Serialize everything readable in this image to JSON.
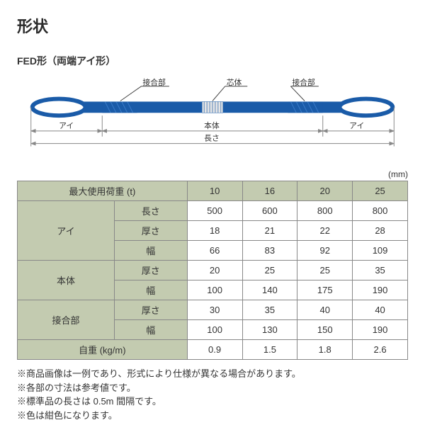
{
  "title": "形状",
  "subtitle": "FED形（両端アイ形）",
  "diagram": {
    "labels": {
      "joint": "接合部",
      "core": "芯体",
      "body": "本体",
      "eye": "アイ",
      "length": "長さ"
    },
    "colors": {
      "sling_body": "#1a5ba8",
      "eye_stroke": "#1a5ba8",
      "core_fill": "#e6e6e6",
      "dim_line": "#888888",
      "arrow": "#888888",
      "leader": "#444444"
    }
  },
  "unit": "(mm)",
  "table": {
    "header_bg": "#c3cbb0",
    "border_color": "#888888",
    "rows": [
      {
        "label1": "最大使用荷重 (t)",
        "colspan1": 2,
        "values": [
          "10",
          "16",
          "20",
          "25"
        ],
        "all_header": true
      },
      {
        "label1": "アイ",
        "rowspan1": 3,
        "label2": "長さ",
        "values": [
          "500",
          "600",
          "800",
          "800"
        ]
      },
      {
        "label2": "厚さ",
        "values": [
          "18",
          "21",
          "22",
          "28"
        ]
      },
      {
        "label2": "幅",
        "values": [
          "66",
          "83",
          "92",
          "109"
        ]
      },
      {
        "label1": "本体",
        "rowspan1": 2,
        "label2": "厚さ",
        "values": [
          "20",
          "25",
          "25",
          "35"
        ]
      },
      {
        "label2": "幅",
        "values": [
          "100",
          "140",
          "175",
          "190"
        ]
      },
      {
        "label1": "接合部",
        "rowspan1": 2,
        "label2": "厚さ",
        "values": [
          "30",
          "35",
          "40",
          "40"
        ]
      },
      {
        "label2": "幅",
        "values": [
          "100",
          "130",
          "150",
          "190"
        ]
      },
      {
        "label1": "自重 (kg/m)",
        "colspan1": 2,
        "values": [
          "0.9",
          "1.5",
          "1.8",
          "2.6"
        ]
      }
    ]
  },
  "notes": [
    "※商品画像は一例であり、形式により仕様が異なる場合があります。",
    "※各部の寸法は参考値です。",
    "※標準品の長さは 0.5m 間隔です。",
    "※色は紺色になります。"
  ]
}
